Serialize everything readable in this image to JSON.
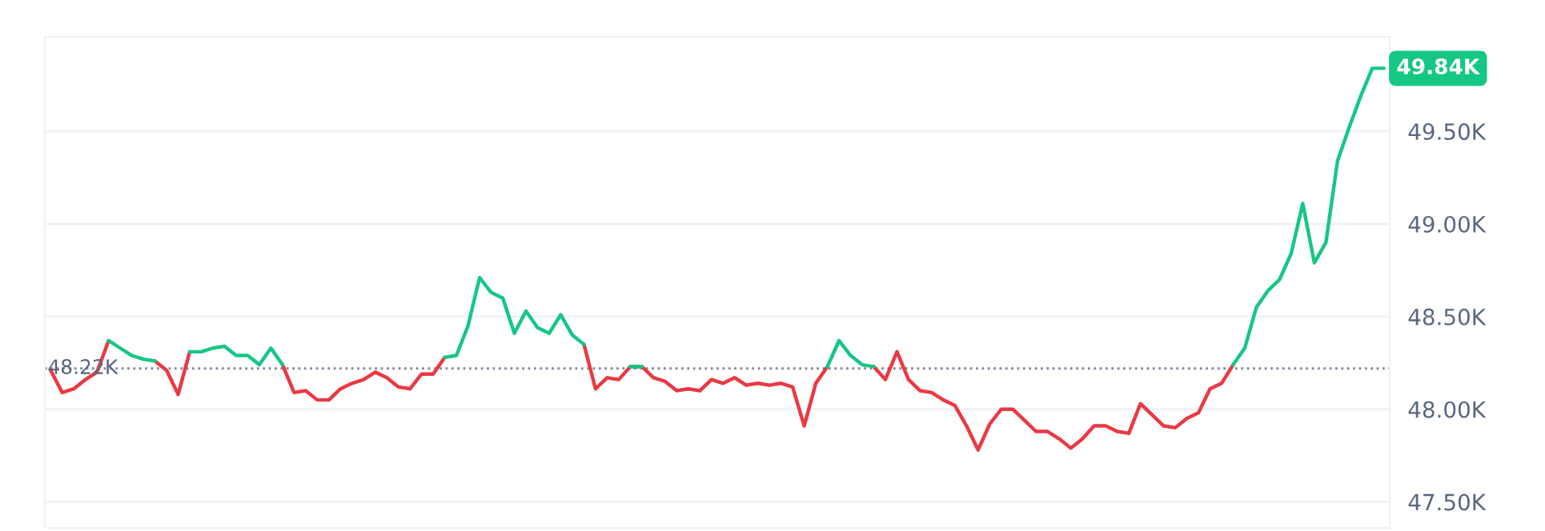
{
  "chart_data": {
    "type": "line",
    "categories": [
      null,
      null,
      null,
      null,
      null,
      null,
      null,
      null,
      null,
      null,
      null,
      null,
      null,
      null,
      null,
      null,
      null,
      null,
      null,
      null,
      null,
      null,
      null,
      null,
      null,
      null,
      null,
      null,
      null,
      null,
      null,
      null,
      null,
      null,
      null,
      null,
      null,
      null,
      null,
      null,
      null,
      null,
      null,
      null,
      null,
      null,
      null,
      null,
      null,
      null,
      null,
      null,
      null,
      null,
      null,
      null,
      null,
      null,
      null,
      null,
      null,
      null,
      null,
      null,
      null,
      null,
      null,
      null,
      null,
      null,
      null,
      null,
      null,
      null,
      null,
      null,
      null,
      null,
      null,
      null,
      null,
      null,
      null,
      null,
      null,
      null,
      null,
      null,
      null,
      null,
      null,
      null,
      null,
      null,
      null,
      null,
      null,
      null,
      null,
      null,
      null,
      null,
      null,
      null,
      null,
      null,
      null,
      null,
      null,
      null,
      null,
      null,
      null,
      null,
      null,
      null
    ],
    "series": [
      {
        "color": "#ea3943",
        "values": [
          48210,
          48090,
          48110,
          48160,
          48200,
          48370,
          null,
          null,
          null,
          48260,
          48210,
          48080,
          48310,
          null,
          null,
          null,
          null,
          null,
          null,
          null,
          48240,
          48090,
          48100,
          48050,
          48050,
          48110,
          48140,
          48160,
          48200,
          48170,
          48120,
          48110,
          48190,
          48190,
          48280,
          null,
          null,
          null,
          null,
          null,
          null,
          null,
          null,
          null,
          null,
          null,
          48350,
          48110,
          48170,
          48160,
          48230,
          48230,
          48170,
          48150,
          48100,
          48110,
          48100,
          48160,
          48140,
          48170,
          48130,
          48140,
          48130,
          48140,
          48120,
          47910,
          48140,
          48230,
          null,
          null,
          null,
          48230,
          48160,
          48310,
          48160,
          48100,
          48090,
          48050,
          48020,
          47910,
          47780,
          47920,
          48000,
          48000,
          47940,
          47880,
          47880,
          47840,
          47790,
          47840,
          47910,
          47910,
          47880,
          47870,
          48030,
          47970,
          47910,
          47900,
          47950,
          47980,
          48110,
          48140,
          48240,
          null,
          null,
          null,
          null,
          null,
          null,
          null,
          null,
          null,
          null,
          null,
          null,
          null
        ]
      },
      {
        "color": "#16c784",
        "values": [
          null,
          null,
          null,
          null,
          null,
          48370,
          48330,
          48290,
          48270,
          48260,
          null,
          null,
          48310,
          48310,
          48330,
          48340,
          48290,
          48290,
          48240,
          48330,
          48240,
          null,
          null,
          null,
          null,
          null,
          null,
          null,
          null,
          null,
          null,
          null,
          null,
          null,
          48280,
          48290,
          48450,
          48710,
          48630,
          48600,
          48410,
          48530,
          48440,
          48410,
          48510,
          48400,
          48350,
          null,
          null,
          null,
          48230,
          48230,
          null,
          null,
          null,
          null,
          null,
          null,
          null,
          null,
          null,
          null,
          null,
          null,
          null,
          null,
          null,
          48230,
          48370,
          48290,
          48240,
          48230,
          null,
          null,
          null,
          null,
          null,
          null,
          null,
          null,
          null,
          null,
          null,
          null,
          null,
          null,
          null,
          null,
          null,
          null,
          null,
          null,
          null,
          null,
          null,
          null,
          null,
          null,
          null,
          null,
          null,
          null,
          48240,
          48330,
          48550,
          48640,
          48700,
          48840,
          49110,
          48790,
          48900,
          49340,
          49520,
          49690,
          49840,
          49840
        ]
      }
    ],
    "ylim": [
      47360,
      50010
    ],
    "yticks": [
      {
        "value": 47500,
        "label": "47.50K"
      },
      {
        "value": 48000,
        "label": "48.00K"
      },
      {
        "value": 48500,
        "label": "48.50K"
      },
      {
        "value": 49000,
        "label": "49.00K"
      },
      {
        "value": 49500,
        "label": "49.50K"
      }
    ],
    "ref_lines": [
      {
        "axis": "y",
        "value": 48220,
        "label": "48.22K",
        "color": "#808a9d",
        "line_style": "dotted"
      }
    ],
    "annotations": [
      "49.84K"
    ],
    "grid": "y",
    "tick_labels": "y",
    "legend": false,
    "marker": "none",
    "line_style": "solid"
  }
}
